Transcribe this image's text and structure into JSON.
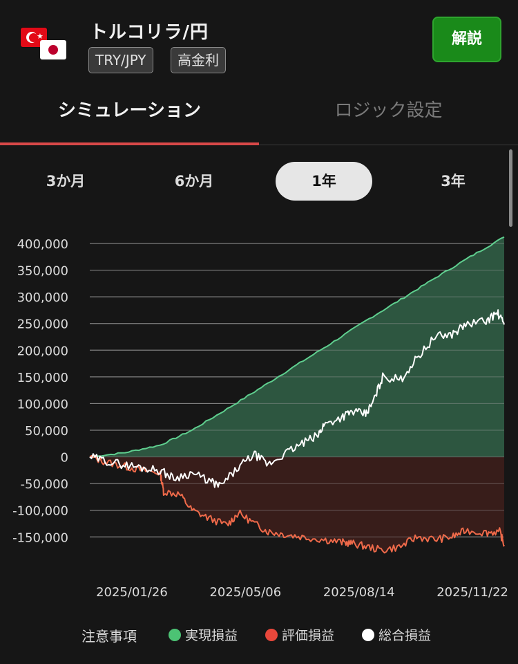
{
  "header": {
    "title": "トルコリラ/円",
    "tags": [
      "TRY/JPY",
      "高金利"
    ],
    "explain_button": "解説",
    "flags": [
      "turkey-flag",
      "japan-flag"
    ]
  },
  "tabs": [
    {
      "label": "シミュレーション",
      "active": true
    },
    {
      "label": "ロジック設定",
      "active": false
    }
  ],
  "periods": [
    {
      "label": "3か月",
      "active": false
    },
    {
      "label": "6か月",
      "active": false
    },
    {
      "label": "1年",
      "active": true
    },
    {
      "label": "3年",
      "active": false
    }
  ],
  "colors": {
    "realized": "#5fcf8f",
    "valuation": "#ef6a4a",
    "total": "#ffffff",
    "realized_fill": "#2e5a42",
    "valuation_fill": "#3a1e1a",
    "accent": "#d84848"
  },
  "legend": {
    "note": "注意事項",
    "items": [
      {
        "label": "実現損益",
        "color": "#4cc374"
      },
      {
        "label": "評価損益",
        "color": "#e8473b"
      },
      {
        "label": "総合損益",
        "color": "#ffffff"
      }
    ]
  },
  "chart_data": {
    "type": "area",
    "x_tick_labels": [
      "2025/01/26",
      "2025/05/06",
      "2025/08/14",
      "2025/11/22"
    ],
    "x_tick_dates": [
      "2025-01-26",
      "2025-05-06",
      "2025-08-14",
      "2025-11-22"
    ],
    "x_range": [
      "2024-12-26",
      "2025-12-26"
    ],
    "y_tick_labels": [
      "400,000",
      "350,000",
      "300,000",
      "250,000",
      "200,000",
      "150,000",
      "100,000",
      "50,000",
      "0",
      "-50,000",
      "-100,000",
      "-150,000"
    ],
    "ylim": [
      -160000,
      400000
    ],
    "grid": true,
    "legend_position": "bottom",
    "series": [
      {
        "name": "実現損益",
        "color": "#5fcf8f",
        "fill": true,
        "x": [
          "2024-12-26",
          "2025-01-26",
          "2025-02-26",
          "2025-03-26",
          "2025-04-26",
          "2025-05-26",
          "2025-06-26",
          "2025-07-26",
          "2025-08-26",
          "2025-09-26",
          "2025-10-26",
          "2025-11-26",
          "2025-12-26"
        ],
        "values": [
          0,
          8000,
          22000,
          50000,
          90000,
          130000,
          172000,
          212000,
          255000,
          295000,
          335000,
          375000,
          412000
        ]
      },
      {
        "name": "評価損益",
        "color": "#ef6a4a",
        "fill": true,
        "x": [
          "2024-12-26",
          "2025-01-10",
          "2025-01-26",
          "2025-02-10",
          "2025-02-26",
          "2025-03-01",
          "2025-03-15",
          "2025-03-26",
          "2025-04-10",
          "2025-04-26",
          "2025-05-06",
          "2025-05-20",
          "2025-06-01",
          "2025-06-15",
          "2025-07-01",
          "2025-07-20",
          "2025-08-05",
          "2025-08-14",
          "2025-08-26",
          "2025-09-10",
          "2025-09-26",
          "2025-10-10",
          "2025-10-26",
          "2025-11-10",
          "2025-11-22",
          "2025-12-10",
          "2025-12-22",
          "2025-12-26"
        ],
        "values": [
          0,
          -10000,
          -18000,
          -25000,
          -30000,
          -65000,
          -70000,
          -100000,
          -115000,
          -128000,
          -105000,
          -125000,
          -140000,
          -145000,
          -150000,
          -155000,
          -160000,
          -162000,
          -168000,
          -175000,
          -168000,
          -150000,
          -155000,
          -150000,
          -138000,
          -142000,
          -140000,
          -165000
        ]
      },
      {
        "name": "総合損益",
        "color": "#ffffff",
        "fill": false,
        "x": [
          "2024-12-26",
          "2025-01-10",
          "2025-01-26",
          "2025-02-10",
          "2025-02-26",
          "2025-03-10",
          "2025-03-26",
          "2025-04-10",
          "2025-04-20",
          "2025-05-06",
          "2025-05-20",
          "2025-06-01",
          "2025-06-15",
          "2025-07-01",
          "2025-07-15",
          "2025-07-20",
          "2025-08-05",
          "2025-08-14",
          "2025-08-26",
          "2025-09-01",
          "2025-09-10",
          "2025-09-26",
          "2025-10-10",
          "2025-10-26",
          "2025-11-10",
          "2025-11-22",
          "2025-12-10",
          "2025-12-20",
          "2025-12-26"
        ],
        "values": [
          0,
          -8000,
          -15000,
          -20000,
          -25000,
          -40000,
          -30000,
          -45000,
          -55000,
          -20000,
          5000,
          -15000,
          5000,
          25000,
          40000,
          60000,
          75000,
          85000,
          80000,
          100000,
          150000,
          145000,
          185000,
          225000,
          230000,
          248000,
          255000,
          270000,
          248000
        ]
      }
    ]
  }
}
